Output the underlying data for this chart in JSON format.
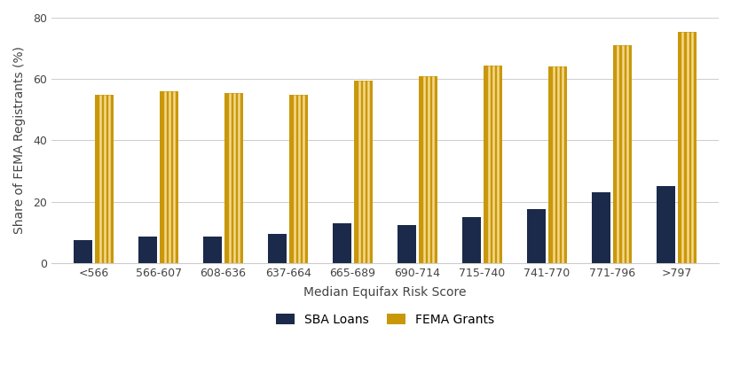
{
  "categories": [
    "<566",
    "566-607",
    "608-636",
    "637-664",
    "665-689",
    "690-714",
    "715-740",
    "741-770",
    "771-796",
    ">797"
  ],
  "sba_loans": [
    7.5,
    8.5,
    8.5,
    9.5,
    13.0,
    12.5,
    15.0,
    17.5,
    23.0,
    25.0
  ],
  "fema_grants": [
    55.0,
    56.0,
    55.5,
    55.0,
    59.5,
    61.0,
    64.5,
    64.0,
    71.0,
    75.5
  ],
  "sba_color": "#1B2A4A",
  "fema_color": "#C9980A",
  "fema_line_color": "#F5D98B",
  "ylabel": "Share of FEMA Registrants (%)",
  "xlabel": "Median Equifax Risk Score",
  "legend_sba": "SBA Loans",
  "legend_fema": "FEMA Grants",
  "ylim": [
    0,
    80
  ],
  "yticks": [
    0,
    20,
    40,
    60,
    80
  ],
  "background_color": "#FFFFFF",
  "grid_color": "#CCCCCC",
  "label_fontsize": 10,
  "tick_fontsize": 9,
  "bar_width": 0.28,
  "bar_gap": 0.05
}
